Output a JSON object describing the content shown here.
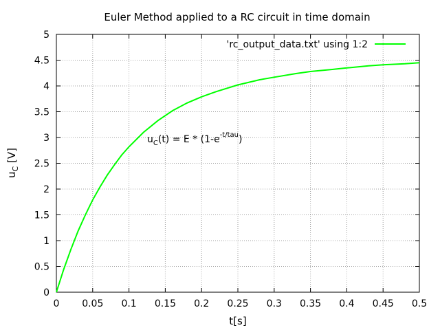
{
  "chart_data": {
    "type": "line",
    "title": "Euler Method applied to a RC circuit in time domain",
    "xlabel": "t[s]",
    "ylabel": {
      "main": "u",
      "sub": "C",
      "rest": " [V]"
    },
    "xlim": [
      0,
      0.5
    ],
    "ylim": [
      0,
      5
    ],
    "xticks": [
      "0",
      "0.05",
      "0.1",
      "0.15",
      "0.2",
      "0.25",
      "0.3",
      "0.35",
      "0.4",
      "0.45",
      "0.5"
    ],
    "yticks": [
      "0",
      "0.5",
      "1",
      "1.5",
      "2",
      "2.5",
      "3",
      "3.5",
      "4",
      "4.5",
      "5"
    ],
    "grid": true,
    "legend_position": "top-right",
    "annotation": {
      "main": "u",
      "sub": "C",
      "mid": "(t) = E * (1-e",
      "sup": "-t/tau",
      "end": ")"
    },
    "series": [
      {
        "name": "'rc_output_data.txt' using 1:2",
        "color": "#00ff00",
        "x": [
          0,
          0.01,
          0.02,
          0.03,
          0.04,
          0.05,
          0.06,
          0.07,
          0.08,
          0.09,
          0.1,
          0.12,
          0.14,
          0.16,
          0.18,
          0.2,
          0.22,
          0.25,
          0.28,
          0.3,
          0.33,
          0.35,
          0.38,
          0.4,
          0.43,
          0.45,
          0.48,
          0.5
        ],
        "y": [
          0,
          0.44,
          0.83,
          1.19,
          1.5,
          1.79,
          2.04,
          2.27,
          2.47,
          2.66,
          2.82,
          3.1,
          3.33,
          3.52,
          3.67,
          3.79,
          3.89,
          4.02,
          4.12,
          4.17,
          4.24,
          4.28,
          4.32,
          4.35,
          4.39,
          4.41,
          4.43,
          4.45
        ]
      }
    ]
  }
}
